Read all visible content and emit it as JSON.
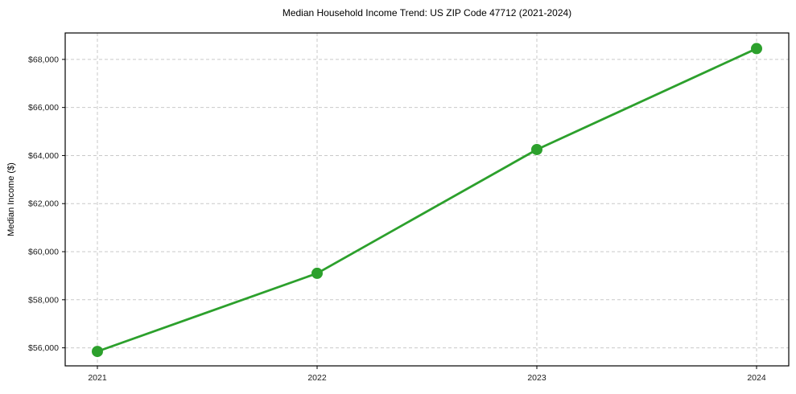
{
  "chart_data": {
    "type": "line",
    "title": "Median Household Income Trend: US ZIP Code 47712 (2021-2024)",
    "xlabel": "",
    "ylabel": "Median Income ($)",
    "categories": [
      "2021",
      "2022",
      "2023",
      "2024"
    ],
    "series": [
      {
        "name": "Median Household Income",
        "values": [
          55850,
          59100,
          64250,
          68450
        ]
      }
    ],
    "ylim": [
      55250,
      69100
    ],
    "yticks": [
      56000,
      58000,
      60000,
      62000,
      64000,
      66000,
      68000
    ],
    "ytick_labels": [
      "$56,000",
      "$58,000",
      "$60,000",
      "$62,000",
      "$64,000",
      "$66,000",
      "$68,000"
    ],
    "grid": true,
    "grid_style": "dashed",
    "legend": "none",
    "colors": {
      "line": "#2ca02c",
      "marker": "#2ca02c",
      "grid": "#c9c9c9",
      "frame": "#000000",
      "background": "#ffffff",
      "text": "#1a1a1a"
    },
    "marker": "circle",
    "marker_radius": 7
  }
}
